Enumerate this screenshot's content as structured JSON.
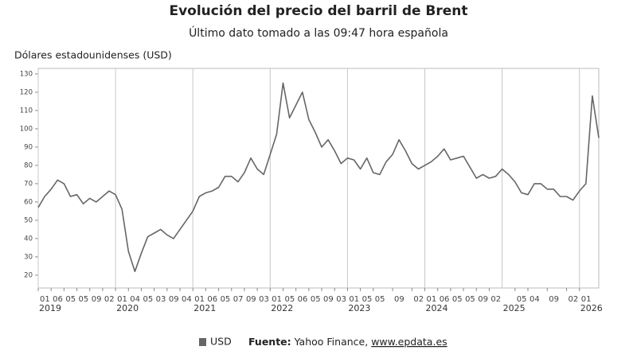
{
  "chart_data": {
    "type": "line",
    "title": "Evolución del precio del barril de Brent",
    "subtitle": "Último dato tomado a las 09:47 hora española",
    "y_label": "Dólares estadounidenses (USD)",
    "source_label": "Fuente:",
    "source_text": "Yahoo Finance,",
    "source_link": "www.epdata.es",
    "x": [
      "2019-01",
      "2019-02",
      "2019-03",
      "2019-04",
      "2019-05",
      "2019-06",
      "2019-07",
      "2019-08",
      "2019-09",
      "2019-10",
      "2019-11",
      "2019-12",
      "2020-01",
      "2020-02",
      "2020-03",
      "2020-04",
      "2020-05",
      "2020-06",
      "2020-07",
      "2020-08",
      "2020-09",
      "2020-10",
      "2020-11",
      "2020-12",
      "2021-01",
      "2021-02",
      "2021-03",
      "2021-04",
      "2021-05",
      "2021-06",
      "2021-07",
      "2021-08",
      "2021-09",
      "2021-10",
      "2021-11",
      "2021-12",
      "2022-01",
      "2022-02",
      "2022-03",
      "2022-04",
      "2022-05",
      "2022-06",
      "2022-07",
      "2022-08",
      "2022-09",
      "2022-10",
      "2022-11",
      "2022-12",
      "2023-01",
      "2023-02",
      "2023-03",
      "2023-04",
      "2023-05",
      "2023-06",
      "2023-07",
      "2023-08",
      "2023-09",
      "2023-10",
      "2023-11",
      "2023-12",
      "2024-01",
      "2024-02",
      "2024-03",
      "2024-04",
      "2024-05",
      "2024-06",
      "2024-07",
      "2024-08",
      "2024-09",
      "2024-10",
      "2024-11",
      "2024-12",
      "2025-01",
      "2025-02",
      "2025-03",
      "2025-04",
      "2025-05",
      "2025-06",
      "2025-07",
      "2025-08",
      "2025-09",
      "2025-10",
      "2025-11",
      "2025-12",
      "2026-01",
      "2026-02",
      "2026-03",
      "2026-04"
    ],
    "series": [
      {
        "name": "USD",
        "color": "#666666",
        "values": [
          57,
          63,
          67,
          72,
          70,
          63,
          64,
          59,
          62,
          60,
          63,
          66,
          64,
          56,
          33,
          22,
          32,
          41,
          43,
          45,
          42,
          40,
          45,
          50,
          55,
          63,
          65,
          66,
          68,
          74,
          74,
          71,
          76,
          84,
          78,
          75,
          86,
          97,
          125,
          106,
          113,
          120,
          105,
          98,
          90,
          94,
          88,
          81,
          84,
          83,
          78,
          84,
          76,
          75,
          82,
          86,
          94,
          88,
          81,
          78,
          80,
          82,
          85,
          89,
          83,
          84,
          85,
          79,
          73,
          75,
          73,
          74,
          78,
          75,
          71,
          65,
          64,
          70,
          70,
          67,
          67,
          63,
          63,
          61,
          66,
          70,
          118,
          95
        ]
      }
    ],
    "xlim": [
      "2019-01",
      "2026-04"
    ],
    "xticks": [
      {
        "value": "2019-01",
        "label": "2019"
      },
      {
        "value": "2020-01",
        "label": "2020"
      },
      {
        "value": "2021-01",
        "label": "2021"
      },
      {
        "value": "2022-01",
        "label": "2022"
      },
      {
        "value": "2023-01",
        "label": "2023"
      },
      {
        "value": "2024-01",
        "label": "2024"
      },
      {
        "value": "2025-01",
        "label": "2025"
      },
      {
        "value": "2026-01",
        "label": "2026"
      }
    ],
    "xticks_minor": [
      {
        "value": "2019-01",
        "label": "01"
      },
      {
        "value": "2019-03",
        "label": "06"
      },
      {
        "value": "2019-05",
        "label": "05"
      },
      {
        "value": "2019-07",
        "label": "05"
      },
      {
        "value": "2019-09",
        "label": "09"
      },
      {
        "value": "2019-11",
        "label": "02"
      },
      {
        "value": "2020-01",
        "label": "01"
      },
      {
        "value": "2020-03",
        "label": "04"
      },
      {
        "value": "2020-05",
        "label": "05"
      },
      {
        "value": "2020-07",
        "label": "03"
      },
      {
        "value": "2020-09",
        "label": "09"
      },
      {
        "value": "2020-11",
        "label": "04"
      },
      {
        "value": "2021-01",
        "label": "01"
      },
      {
        "value": "2021-03",
        "label": "06"
      },
      {
        "value": "2021-05",
        "label": "05"
      },
      {
        "value": "2021-07",
        "label": "07"
      },
      {
        "value": "2021-09",
        "label": "09"
      },
      {
        "value": "2021-11",
        "label": "03"
      },
      {
        "value": "2022-01",
        "label": "01"
      },
      {
        "value": "2022-03",
        "label": "05"
      },
      {
        "value": "2022-05",
        "label": "06"
      },
      {
        "value": "2022-07",
        "label": "05"
      },
      {
        "value": "2022-09",
        "label": "09"
      },
      {
        "value": "2022-11",
        "label": "03"
      },
      {
        "value": "2023-01",
        "label": "01"
      },
      {
        "value": "2023-03",
        "label": "05"
      },
      {
        "value": "2023-05",
        "label": "05"
      },
      {
        "value": "2023-08",
        "label": "09"
      },
      {
        "value": "2023-11",
        "label": "02"
      },
      {
        "value": "2024-01",
        "label": "01"
      },
      {
        "value": "2024-03",
        "label": "06"
      },
      {
        "value": "2024-05",
        "label": "05"
      },
      {
        "value": "2024-07",
        "label": "05"
      },
      {
        "value": "2024-09",
        "label": "09"
      },
      {
        "value": "2024-11",
        "label": "02"
      },
      {
        "value": "2025-03",
        "label": "05"
      },
      {
        "value": "2025-05",
        "label": "04"
      },
      {
        "value": "2025-08",
        "label": "09"
      },
      {
        "value": "2025-11",
        "label": "02"
      },
      {
        "value": "2026-01",
        "label": "01"
      }
    ],
    "ylim": [
      13,
      133
    ],
    "yticks": [
      20,
      30,
      40,
      50,
      60,
      70,
      80,
      90,
      100,
      110,
      120,
      130
    ],
    "grid": true
  }
}
